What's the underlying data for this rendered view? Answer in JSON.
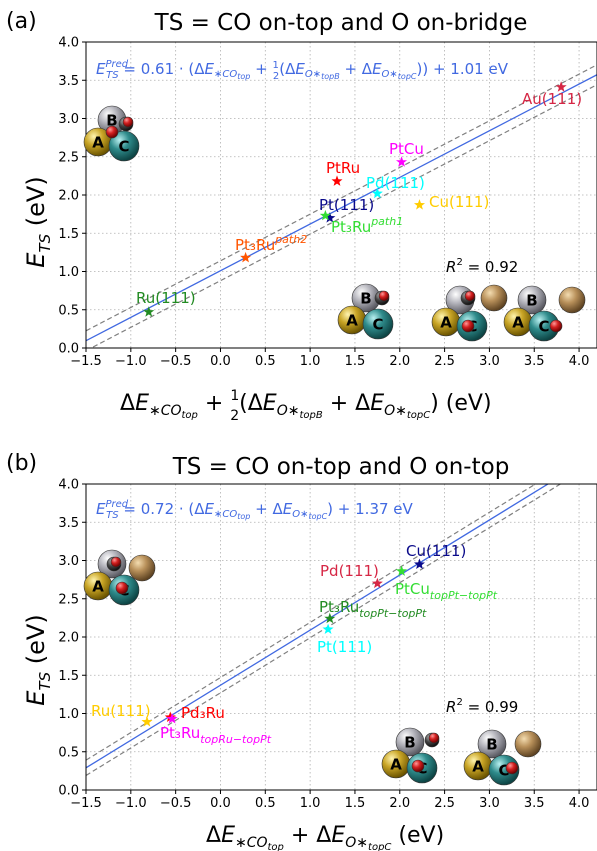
{
  "chart_data": [
    {
      "type": "scatter",
      "panel_label": "(a)",
      "title": "TS = CO on-top and O on-bridge",
      "equation": "E_TS^Pred = 0.61 · (ΔE_*CO_top + ½(ΔE_O*_topB + ΔE_O*_topC)) + 1.01 eV",
      "ylabel": "E_TS (eV)",
      "xlabel": "ΔE_*CO_top + ½(ΔE_O*_topB + ΔE_O*_topC) (eV)",
      "xlim": [
        -1.5,
        4.2
      ],
      "ylim": [
        0.0,
        4.0
      ],
      "xticks": [
        "−1.5",
        "−1.0",
        "−0.5",
        "0.0",
        "0.5",
        "1.0",
        "1.5",
        "2.0",
        "2.5",
        "3.0",
        "3.5",
        "4.0"
      ],
      "yticks": [
        "0.0",
        "0.5",
        "1.0",
        "1.5",
        "2.0",
        "2.5",
        "3.0",
        "3.5",
        "4.0"
      ],
      "grid": true,
      "fit": {
        "slope": 0.61,
        "intercept": 1.01,
        "band": 0.13
      },
      "r2": "0.92",
      "points": [
        {
          "label": "Au(111)",
          "x": 3.8,
          "y": 3.41,
          "color": "#d62745"
        },
        {
          "label": "PtCu",
          "x": 2.02,
          "y": 2.43,
          "color": "#ff00ff"
        },
        {
          "label": "PtRu",
          "x": 1.3,
          "y": 2.18,
          "color": "#ff0000"
        },
        {
          "label": "Pd(111)",
          "x": 1.75,
          "y": 2.02,
          "color": "#00ffff"
        },
        {
          "label": "Cu(111)",
          "x": 2.22,
          "y": 1.87,
          "color": "#ffcc00"
        },
        {
          "label": "Pt(111)",
          "x": 1.22,
          "y": 1.7,
          "color": "#0a0a8a"
        },
        {
          "label": "Pt₃Ru^path1",
          "x": 1.17,
          "y": 1.73,
          "color": "#33dd33"
        },
        {
          "label": "Pt₃Ru^path2",
          "x": 0.28,
          "y": 1.18,
          "color": "#ff5500"
        },
        {
          "label": "Ru(111)",
          "x": -0.8,
          "y": 0.47,
          "color": "#228b22"
        }
      ]
    },
    {
      "type": "scatter",
      "panel_label": "(b)",
      "title": "TS = CO on-top and O on-top",
      "equation": "E_TS^Pred = 0.72 · (ΔE_*CO_top + ΔE_O*_topC) + 1.37 eV",
      "ylabel": "E_TS (eV)",
      "xlabel": "ΔE_*CO_top + ΔE_O*_topC (eV)",
      "xlim": [
        -1.5,
        4.2
      ],
      "ylim": [
        0.0,
        4.0
      ],
      "xticks": [
        "−1.5",
        "−1.0",
        "−0.5",
        "0.0",
        "0.5",
        "1.0",
        "1.5",
        "2.0",
        "2.5",
        "3.0",
        "3.5",
        "4.0"
      ],
      "yticks": [
        "0.0",
        "0.5",
        "1.0",
        "1.5",
        "2.0",
        "2.5",
        "3.0",
        "3.5",
        "4.0"
      ],
      "grid": true,
      "fit": {
        "slope": 0.72,
        "intercept": 1.37,
        "band": 0.1
      },
      "r2": "0.99",
      "points": [
        {
          "label": "Cu(111)",
          "x": 2.22,
          "y": 2.95,
          "color": "#0a0a8a"
        },
        {
          "label": "Pd(111)",
          "x": 1.75,
          "y": 2.7,
          "color": "#d62745"
        },
        {
          "label": "PtCu_topPt−topPt",
          "x": 2.02,
          "y": 2.86,
          "color": "#33dd33"
        },
        {
          "label": "Pt₃Ru_topPt−topPt",
          "x": 1.22,
          "y": 2.24,
          "color": "#228b22"
        },
        {
          "label": "Pt(111)",
          "x": 1.2,
          "y": 2.1,
          "color": "#00ffff"
        },
        {
          "label": "Ru(111)",
          "x": -0.82,
          "y": 0.89,
          "color": "#ffcc00"
        },
        {
          "label": "Pd₃Ru",
          "x": -0.56,
          "y": 0.95,
          "color": "#ff0000"
        },
        {
          "label": "Pt₃Ru_topRu−topPt",
          "x": -0.54,
          "y": 0.93,
          "color": "#ff00ff"
        }
      ]
    }
  ],
  "site_labels": {
    "a": "A",
    "b": "B",
    "c": "C"
  }
}
